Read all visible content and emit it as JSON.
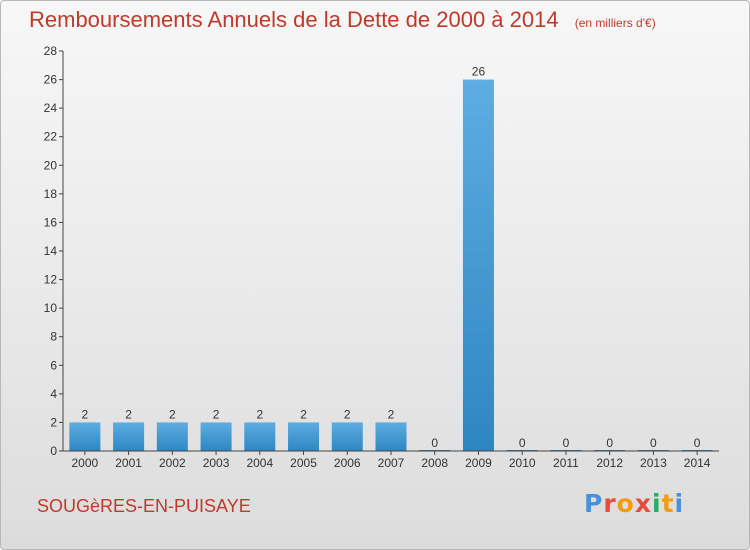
{
  "header": {
    "title": "Remboursements Annuels de la Dette de 2000 à 2014",
    "unit": "(en milliers d'€)"
  },
  "footer": {
    "commune": "SOUGèRES-EN-PUISAYE",
    "logo_text": "Proxiti"
  },
  "colors": {
    "title": "#c0392b",
    "bar_light": "#5dade2",
    "bar_dark": "#2e86c1",
    "text": "#333333"
  },
  "chart_data": {
    "type": "bar",
    "title": "Remboursements Annuels de la Dette de 2000 à 2014",
    "subtitle": "(en milliers d'€)",
    "categories": [
      "2000",
      "2001",
      "2002",
      "2003",
      "2004",
      "2005",
      "2006",
      "2007",
      "2008",
      "2009",
      "2010",
      "2011",
      "2012",
      "2013",
      "2014"
    ],
    "values": [
      2,
      2,
      2,
      2,
      2,
      2,
      2,
      2,
      0,
      26,
      0,
      0,
      0,
      0,
      0
    ],
    "data_labels": [
      "2",
      "2",
      "2",
      "2",
      "2",
      "2",
      "2",
      "2",
      "0",
      "26",
      "0",
      "0",
      "0",
      "0",
      "0"
    ],
    "ylim": [
      0,
      28
    ],
    "yticks": [
      0,
      2,
      4,
      6,
      8,
      10,
      12,
      14,
      16,
      18,
      20,
      22,
      24,
      26,
      28
    ],
    "xlabel": "",
    "ylabel": "",
    "grid": false,
    "legend": "none"
  }
}
